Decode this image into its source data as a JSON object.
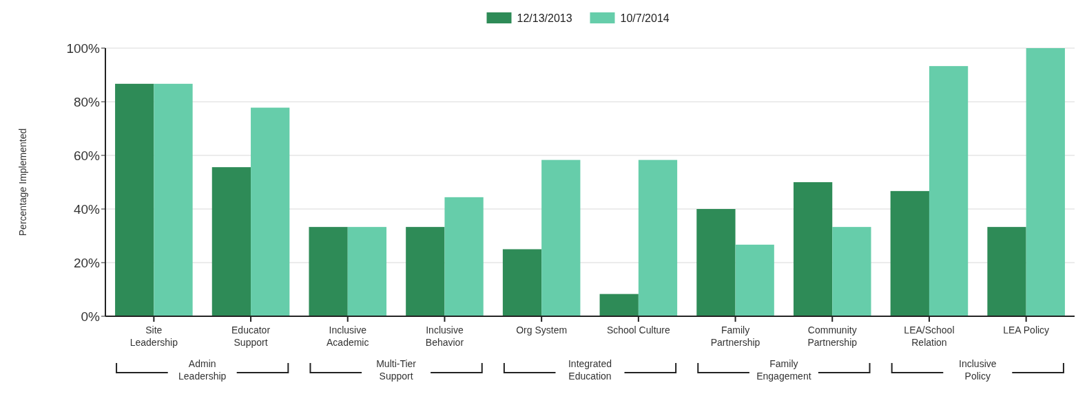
{
  "chart_data": {
    "type": "bar",
    "ylabel": "Percentage Implemented",
    "categories": [
      "Site\nLeadership",
      "Educator\nSupport",
      "Inclusive\nAcademic",
      "Inclusive\nBehavior",
      "Org System",
      "School Culture",
      "Family\nPartnership",
      "Community\nPartnership",
      "LEA/School\nRelation",
      "LEA Policy"
    ],
    "series": [
      {
        "name": "12/13/2013",
        "color": "#2e8b57",
        "values": [
          86.7,
          55.6,
          33.3,
          33.3,
          25,
          8.3,
          40,
          50,
          46.7,
          33.3
        ]
      },
      {
        "name": "10/7/2014",
        "color": "#66cdaa",
        "values": [
          86.7,
          77.8,
          33.3,
          44.4,
          58.3,
          58.3,
          26.7,
          33.3,
          93.3,
          100
        ]
      }
    ],
    "ylim": [
      0,
      100
    ],
    "yticks": [
      {
        "value": 0,
        "label": "0%"
      },
      {
        "value": 20,
        "label": "20%"
      },
      {
        "value": 40,
        "label": "40%"
      },
      {
        "value": 60,
        "label": "60%"
      },
      {
        "value": 80,
        "label": "80%"
      },
      {
        "value": 100,
        "label": "100%"
      }
    ],
    "grid": "y",
    "legend": "top",
    "annotations": [
      "Admin\nLeadership",
      "Multi-Tier\nSupport",
      "Integrated\nEducation",
      "Family\nEngagement",
      "Inclusive\nPolicy"
    ]
  }
}
